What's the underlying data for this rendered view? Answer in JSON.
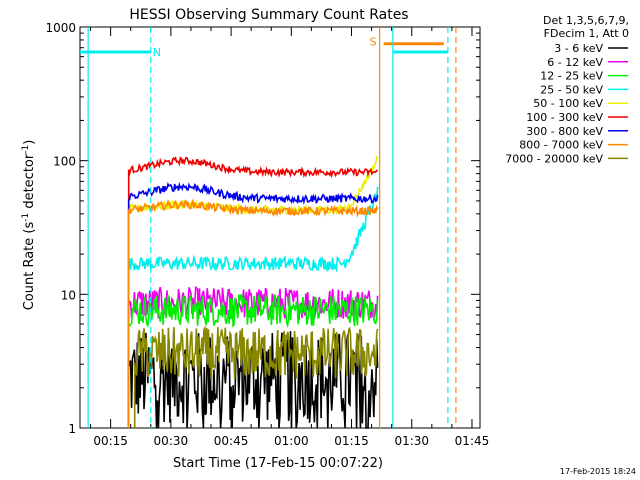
{
  "chart_data": {
    "type": "line",
    "title": "HESSI Observing Summary Count Rates",
    "xlabel": "Start Time (17-Feb-15 00:07:22)",
    "ylabel": "Count Rate (s⁻¹ detector⁻¹)",
    "ylabel_parts": {
      "main": "Count Rate (s",
      "exp1": "-1",
      "mid": " detector",
      "exp2": "-1",
      "end": ")"
    },
    "y_scale": "log",
    "ylim": [
      1,
      1000
    ],
    "y_ticks": [
      {
        "value": 1,
        "label": "1"
      },
      {
        "value": 10,
        "label": "10"
      },
      {
        "value": 100,
        "label": "100"
      },
      {
        "value": 1000,
        "label": "1000"
      }
    ],
    "xlim": [
      "00:07:22",
      "01:47:00"
    ],
    "x_ticks": [
      "00:15",
      "00:30",
      "00:45",
      "01:00",
      "01:15",
      "01:30",
      "01:45"
    ],
    "x_tick_minutes": [
      15,
      30,
      45,
      60,
      75,
      90,
      105
    ],
    "x_range_minutes": [
      7.37,
      107.0
    ],
    "grid": false,
    "legend_position": "top-right",
    "legend_header": [
      "Det 1,3,5,6,7,9,",
      "FDecim 1, Att 0"
    ],
    "series": [
      {
        "name": "3 - 6 keV",
        "color": "#000000",
        "level": 2.4,
        "noise": 0.35,
        "start": 19.5,
        "end": 81.5,
        "lowOk": true
      },
      {
        "name": "6 - 12 keV",
        "color": "#ee00ee",
        "level": 8.6,
        "noise": 0.12,
        "start": 19.5,
        "end": 81.5
      },
      {
        "name": "12 - 25 keV",
        "color": "#00ee00",
        "level": 7.6,
        "noise": 0.12,
        "start": 19.5,
        "end": 81.5
      },
      {
        "name": "25 - 50 keV",
        "color": "#00eeee",
        "level": 17.0,
        "noise": 0.05,
        "start": 19.5,
        "end": 81.5,
        "rise": 40
      },
      {
        "name": "50 - 100 keV",
        "color": "#eeee00",
        "level": 43.0,
        "noise": 0.03,
        "start": 19.5,
        "end": 81.5,
        "rise": 60,
        "hump": 4
      },
      {
        "name": "100 - 300 keV",
        "color": "#ee0000",
        "level": 82.0,
        "noise": 0.025,
        "start": 19.5,
        "end": 81.5,
        "hump": 18
      },
      {
        "name": "300 - 800 keV",
        "color": "#0000ee",
        "level": 52.0,
        "noise": 0.03,
        "start": 19.5,
        "end": 81.5,
        "hump": 12
      },
      {
        "name": "800 - 7000 keV",
        "color": "#ff8800",
        "level": 42.0,
        "noise": 0.03,
        "start": 19.5,
        "end": 81.5,
        "hump": 5
      },
      {
        "name": "7000 - 20000 keV",
        "color": "#888800",
        "level": 3.6,
        "noise": 0.2,
        "start": 21.0,
        "end": 81.5
      }
    ],
    "saa_segments": [
      {
        "color": "#00eeee",
        "start": 7.37,
        "end": 25.0,
        "value": 650
      },
      {
        "color": "#00eeee",
        "start": 85.3,
        "end": 99.0,
        "value": 650
      },
      {
        "color": "#ff8800",
        "start": 83.0,
        "end": 98.0,
        "value": 750
      }
    ],
    "vertical_markers": [
      {
        "minute": 9.4,
        "color": "#00eeee",
        "style": "solid"
      },
      {
        "minute": 25.0,
        "color": "#00eeee",
        "style": "dashed"
      },
      {
        "minute": 82.0,
        "color": "#ff8800",
        "style": "solid"
      },
      {
        "minute": 85.3,
        "color": "#00eeee",
        "style": "solid"
      },
      {
        "minute": 99.0,
        "color": "#00eeee",
        "style": "dashed"
      },
      {
        "minute": 101.0,
        "color": "#ff8800",
        "style": "dashed"
      }
    ],
    "markers": [
      {
        "label": "N",
        "color": "#00eeee",
        "minute": 25.5,
        "value": 650
      },
      {
        "label": "S",
        "color": "#ff8800",
        "minute": 79.5,
        "value": 780
      }
    ]
  },
  "footer": {
    "timestamp": "17-Feb-2015 18:24"
  }
}
